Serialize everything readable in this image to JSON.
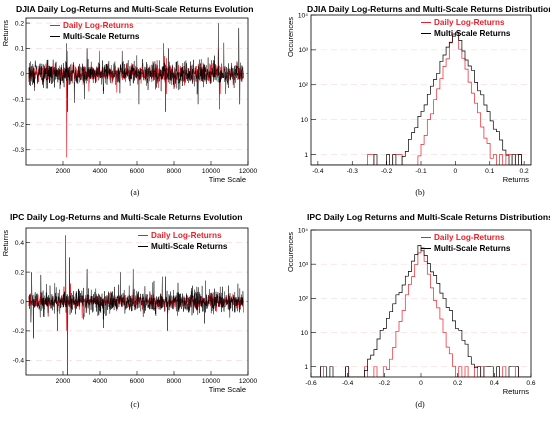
{
  "chart_data": [
    {
      "type": "line",
      "panel": "(a)",
      "title": "DJIA Daily Log-Returns and Multi-Scale Returns Evolution",
      "xlabel": "Time Scale",
      "ylabel": "Returns",
      "xlim": [
        0,
        12000
      ],
      "ylim": [
        -0.36,
        0.22
      ],
      "xticks": [
        2000,
        4000,
        6000,
        8000,
        10000,
        12000
      ],
      "yticks": [
        -0.3,
        -0.2,
        -0.1,
        0.0,
        0.1,
        0.2
      ],
      "ytick_labels": [
        "-0.3",
        "-0.2",
        "-0.1",
        "0",
        "0.1",
        "0.2"
      ],
      "legend_position": "top-left",
      "series": [
        {
          "name": "Daily Log-Returns",
          "color": "#e8202a",
          "band": 0.035,
          "noise_seed": 11,
          "x_end": 11750,
          "spikes": [
            [
              2200,
              -0.33
            ],
            [
              2230,
              0.09
            ],
            [
              3400,
              -0.07
            ],
            [
              7000,
              -0.06
            ],
            [
              7500,
              0.07
            ],
            [
              7600,
              -0.08
            ],
            [
              10400,
              0.1
            ],
            [
              10500,
              -0.08
            ],
            [
              11400,
              0.05
            ]
          ]
        },
        {
          "name": "Multi-Scale Returns",
          "color": "#000000",
          "band": 0.05,
          "noise_seed": 29,
          "x_end": 11750,
          "spikes": [
            [
              2200,
              0.12
            ],
            [
              2250,
              -0.15
            ],
            [
              3150,
              -0.1
            ],
            [
              3300,
              0.1
            ],
            [
              4200,
              -0.08
            ],
            [
              5200,
              0.09
            ],
            [
              6100,
              -0.12
            ],
            [
              7450,
              0.12
            ],
            [
              7550,
              -0.15
            ],
            [
              7700,
              0.1
            ],
            [
              9300,
              -0.12
            ],
            [
              10400,
              0.2
            ],
            [
              10450,
              -0.14
            ],
            [
              11500,
              0.18
            ],
            [
              11550,
              -0.12
            ]
          ]
        }
      ]
    },
    {
      "type": "line",
      "panel": "(b)",
      "title": "DJIA Daily Log-Returns and Multi-Scale Returns Distributions",
      "xlabel": "Returns",
      "ylabel": "Occurences",
      "yscale": "log",
      "xlim": [
        -0.42,
        0.22
      ],
      "ylim": [
        0.5,
        10000
      ],
      "xticks": [
        -0.4,
        -0.3,
        -0.2,
        -0.1,
        0,
        0.1,
        0.2
      ],
      "xtick_labels": [
        "-0.4",
        "-0.3",
        "-0.2",
        "-0.1",
        "0",
        "0.1",
        "0.2"
      ],
      "ytick_labels": [
        "1",
        "10",
        "10²",
        "10³",
        "10⁴"
      ],
      "legend_position": "top-right",
      "series": [
        {
          "name": "Daily Log-Returns",
          "color": "#e8202a",
          "width": 0.07
        },
        {
          "name": "Multi-Scale Returns",
          "color": "#000000",
          "width": 0.1
        }
      ]
    },
    {
      "type": "line",
      "panel": "(c)",
      "title": "IPC Daily Log-Returns and Multi-Scale Returns Evolution",
      "xlabel": "Time Scale",
      "ylabel": "Returns",
      "xlim": [
        0,
        12000
      ],
      "ylim": [
        -0.5,
        0.5
      ],
      "xticks": [
        2000,
        4000,
        6000,
        8000,
        10000,
        12000
      ],
      "yticks": [
        -0.4,
        -0.2,
        0.0,
        0.2,
        0.4
      ],
      "ytick_labels": [
        "-0.4",
        "-0.2",
        "0",
        "0.2",
        "0.4"
      ],
      "legend_position": "top-right",
      "series": [
        {
          "name": "Daily Log-Returns",
          "color": "#e8202a",
          "band": 0.045,
          "noise_seed": 47,
          "x_end": 11750,
          "spikes": [
            [
              1200,
              -0.1
            ],
            [
              2050,
              0.1
            ],
            [
              2200,
              -0.2
            ],
            [
              2400,
              0.12
            ],
            [
              5800,
              0.08
            ],
            [
              7500,
              -0.07
            ]
          ]
        },
        {
          "name": "Multi-Scale Returns",
          "color": "#000000",
          "band": 0.09,
          "noise_seed": 83,
          "x_end": 11750,
          "spikes": [
            [
              300,
              0.2
            ],
            [
              400,
              -0.25
            ],
            [
              800,
              0.18
            ],
            [
              1700,
              -0.2
            ],
            [
              2150,
              0.45
            ],
            [
              2250,
              -0.5
            ],
            [
              2350,
              0.3
            ],
            [
              3300,
              0.22
            ],
            [
              4200,
              -0.18
            ],
            [
              5100,
              0.2
            ],
            [
              5800,
              0.22
            ],
            [
              7550,
              0.17
            ],
            [
              7650,
              -0.2
            ],
            [
              10500,
              0.1
            ]
          ]
        }
      ]
    },
    {
      "type": "line",
      "panel": "(d)",
      "title": "IPC Daily Log Returns and Multi-Scale Returns Distributions",
      "xlabel": "Returns",
      "ylabel": "Occurences",
      "yscale": "log",
      "xlim": [
        -0.6,
        0.6
      ],
      "ylim": [
        0.5,
        10000
      ],
      "xticks": [
        -0.6,
        -0.4,
        -0.2,
        0,
        0.2,
        0.4,
        0.6
      ],
      "xtick_labels": [
        "-0.6",
        "-0.4",
        "-0.2",
        "0",
        "0.2",
        "0.4",
        "0.6"
      ],
      "ytick_labels": [
        "1",
        "10",
        "10²",
        "10³",
        "10⁴"
      ],
      "legend_position": "top-right",
      "series": [
        {
          "name": "Daily Log-Returns",
          "color": "#e8202a",
          "width": 0.12
        },
        {
          "name": "Multi-Scale Returns",
          "color": "#000000",
          "width": 0.2
        }
      ]
    }
  ]
}
